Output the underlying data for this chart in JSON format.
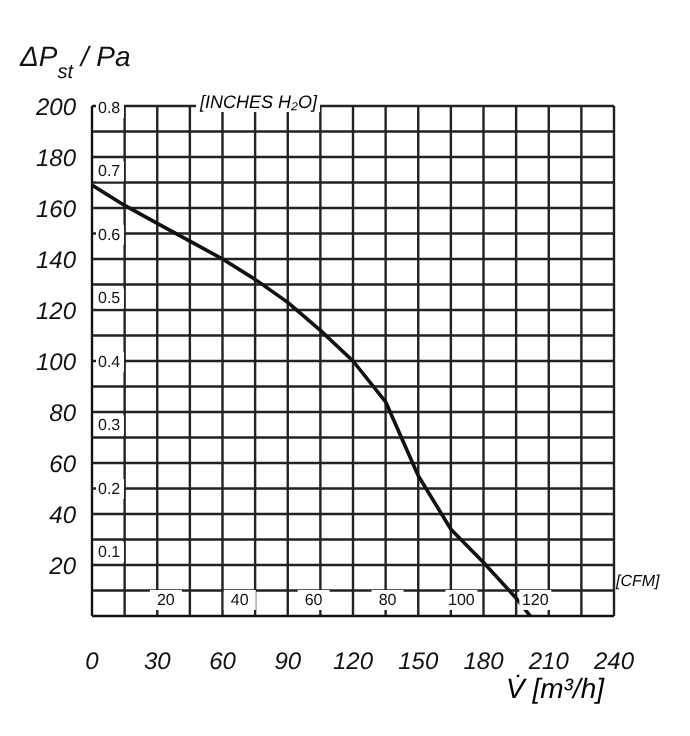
{
  "chart_data": {
    "type": "line",
    "ylabel": "ΔP$_{st}$ / Pa",
    "xlabel": "V̇ [m³/h]",
    "y2label": "[INCHES H₂O]",
    "x2label": "[CFM]",
    "x": [
      0,
      15,
      30,
      45,
      60,
      75,
      90,
      105,
      120,
      135,
      150,
      165,
      180,
      195,
      201.5
    ],
    "series": [
      {
        "color": "#111111",
        "values": [
          169,
          161,
          154,
          147,
          140,
          132,
          123,
          112,
          100,
          84,
          55,
          34,
          21,
          7,
          0
        ]
      }
    ],
    "xlim": [
      0,
      240
    ],
    "ylim": [
      0,
      200
    ],
    "xticks": [
      0,
      {
        "value": 15,
        "label": null
      },
      30,
      {
        "value": 45,
        "label": null
      },
      60,
      {
        "value": 75,
        "label": null
      },
      90,
      {
        "value": 105,
        "label": null
      },
      120,
      {
        "value": 135,
        "label": null
      },
      150,
      {
        "value": 165,
        "label": null
      },
      180,
      {
        "value": 195,
        "label": null
      },
      210,
      {
        "value": 225,
        "label": null
      },
      240
    ],
    "yticks": [
      {
        "value": 0,
        "label": null
      },
      {
        "value": 10,
        "label": null
      },
      20,
      {
        "value": 30,
        "label": null
      },
      40,
      {
        "value": 50,
        "label": null
      },
      60,
      {
        "value": 70,
        "label": null
      },
      80,
      {
        "value": 90,
        "label": null
      },
      100,
      {
        "value": 110,
        "label": null
      },
      120,
      {
        "value": 130,
        "label": null
      },
      140,
      {
        "value": 150,
        "label": null
      },
      160,
      {
        "value": 170,
        "label": null
      },
      180,
      {
        "value": 190,
        "label": null
      },
      200
    ],
    "y2lim": [
      0,
      0.803
    ],
    "y2ticks": [
      0.1,
      0.2,
      0.3,
      0.4,
      0.5,
      0.6,
      0.7,
      0.8
    ],
    "x2lim": [
      0,
      141.3
    ],
    "x2ticks": [
      20,
      40,
      60,
      80,
      100,
      120
    ],
    "grid": true,
    "marker": "none",
    "line_style": "solid"
  }
}
